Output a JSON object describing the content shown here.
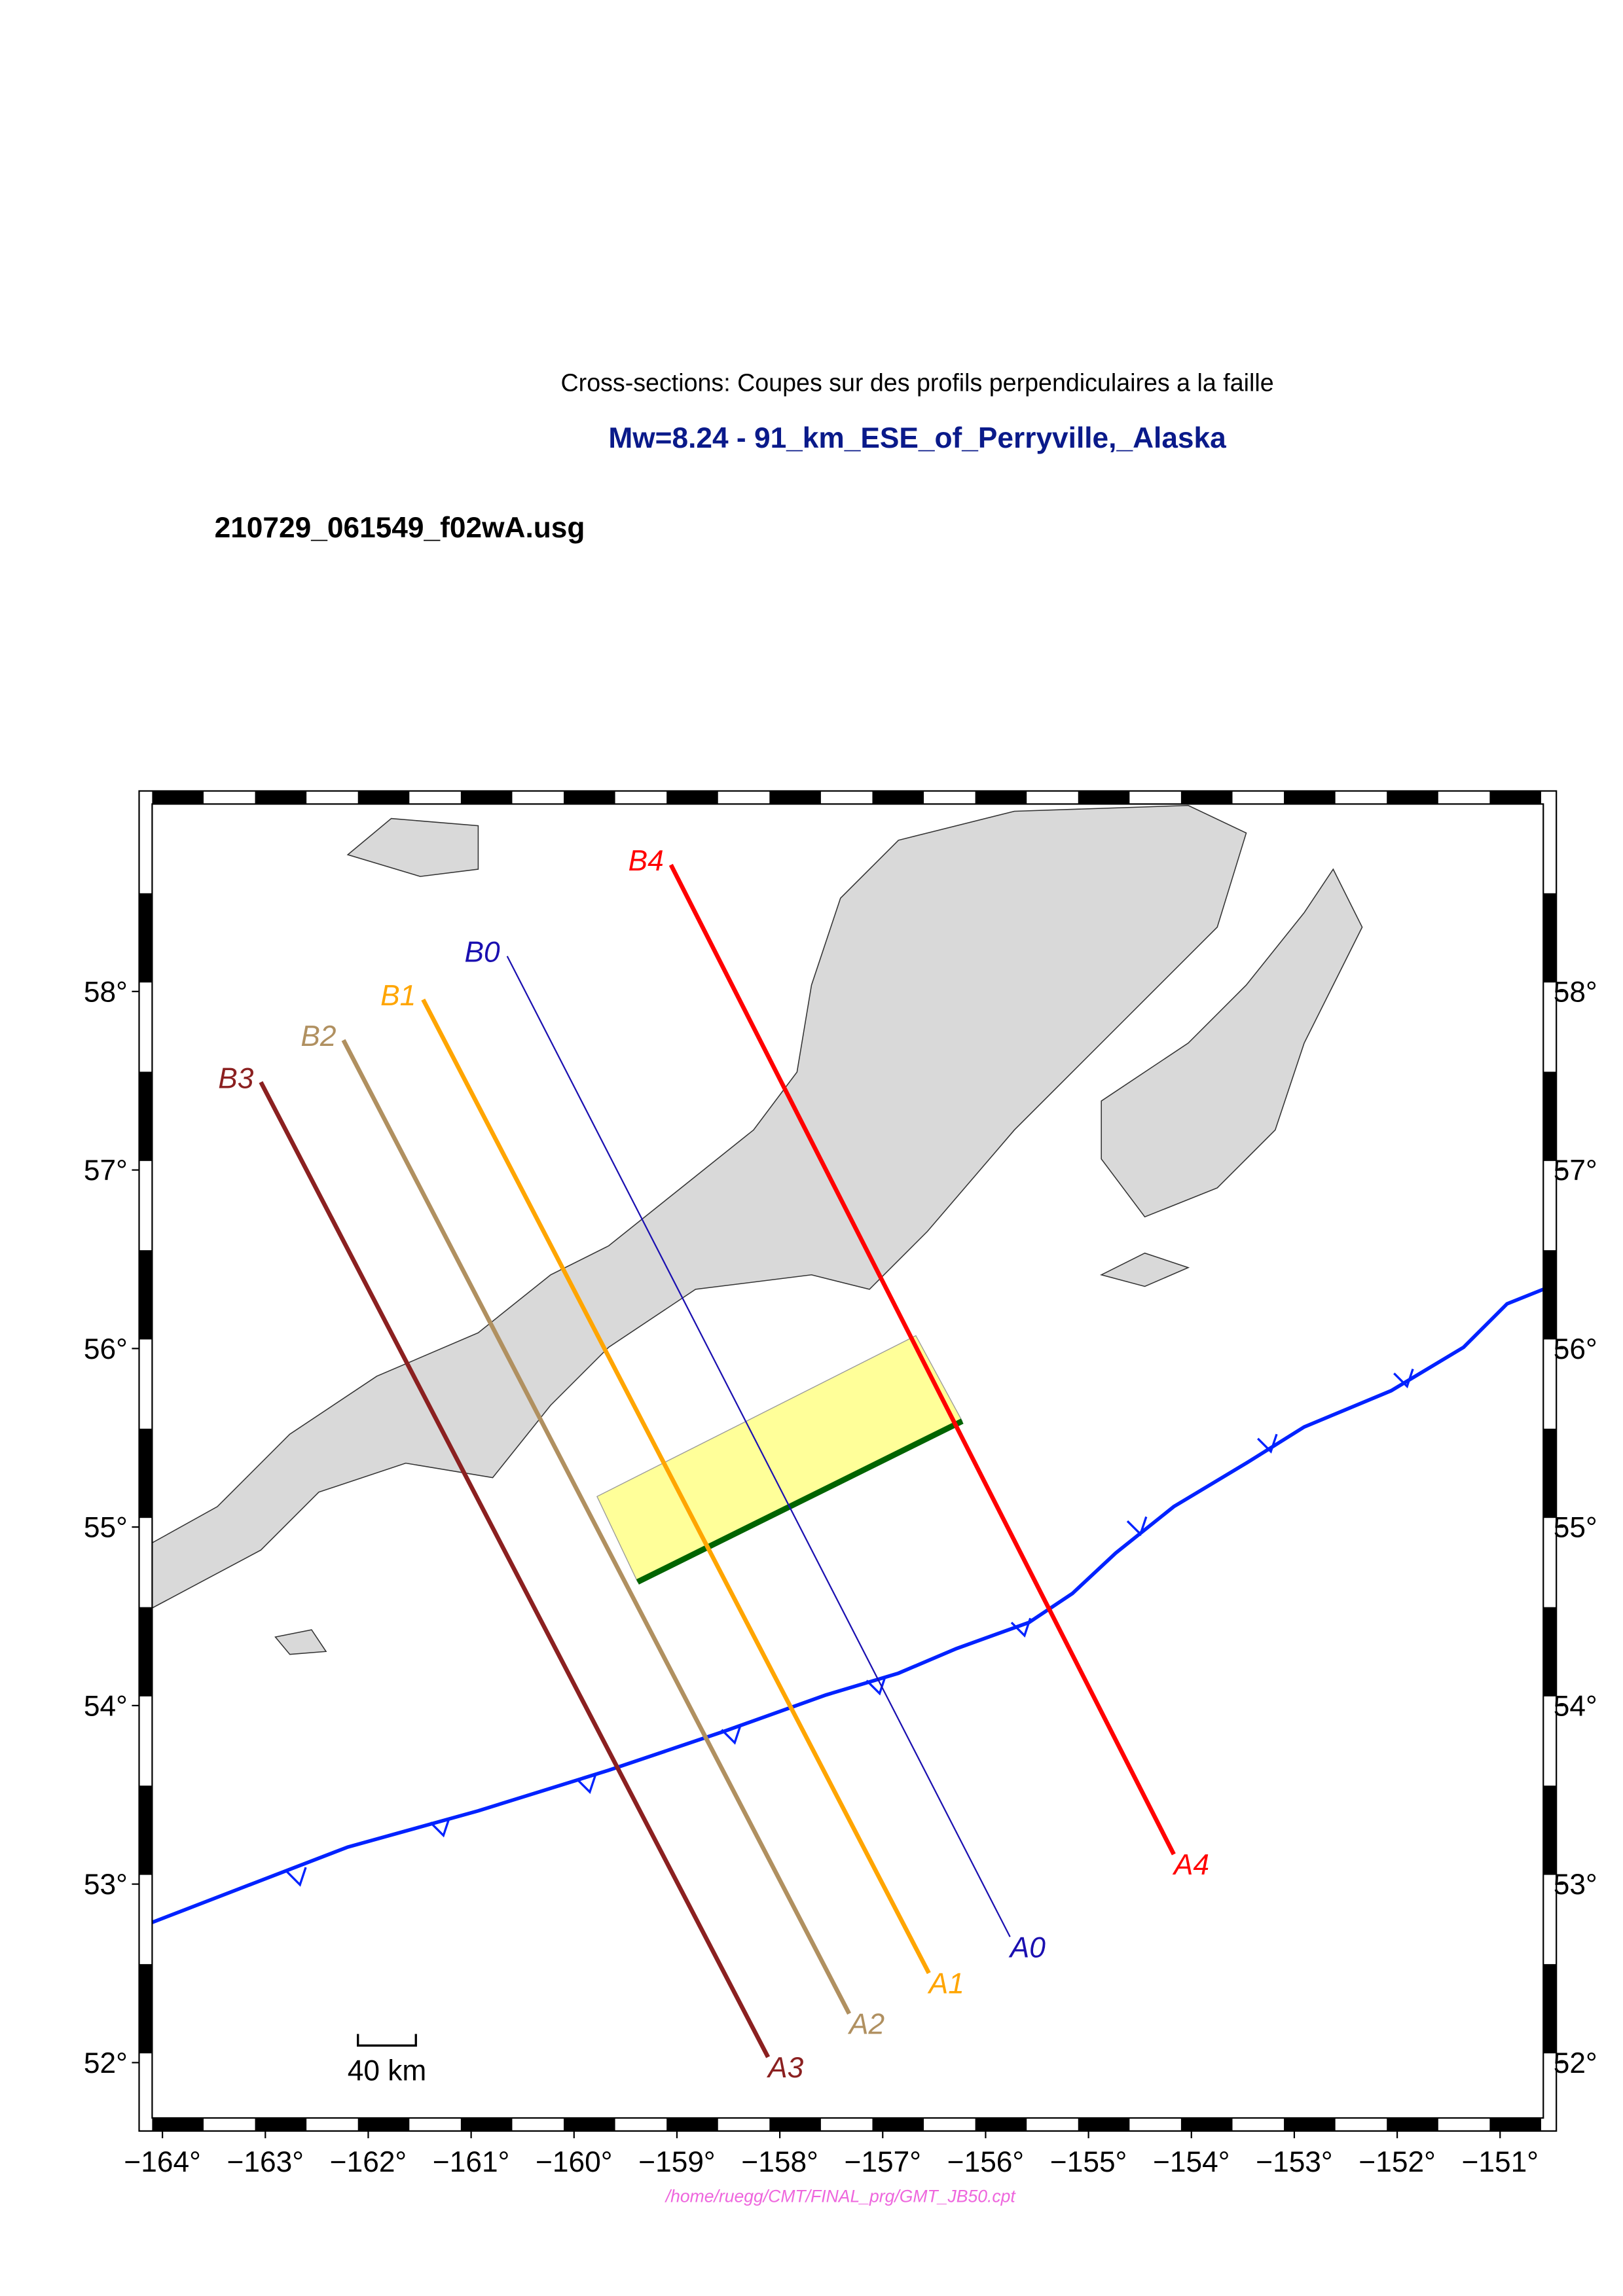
{
  "map": {
    "title": "Cross-sections: Coupes sur des profils perpendiculaires a la faille",
    "subtitle": "Mw=8.24 - 91_km_ESE_of_Perryville,_Alaska",
    "file": "210729_061549_f02wA.usg",
    "footer": "/home/ruegg/CMT/FINAL_prg/GMT_JB50.cpt",
    "scale_label": "40 km",
    "xlim": [
      -164.1,
      -150.58
    ],
    "ylim": [
      51.69,
      59.05
    ],
    "xticks": [
      {
        "value": -164,
        "label": "−164°"
      },
      {
        "value": -163,
        "label": "−163°"
      },
      {
        "value": -162,
        "label": "−162°"
      },
      {
        "value": -161,
        "label": "−161°"
      },
      {
        "value": -160,
        "label": "−160°"
      },
      {
        "value": -159,
        "label": "−159°"
      },
      {
        "value": -158,
        "label": "−158°"
      },
      {
        "value": -157,
        "label": "−157°"
      },
      {
        "value": -156,
        "label": "−156°"
      },
      {
        "value": -155,
        "label": "−155°"
      },
      {
        "value": -154,
        "label": "−154°"
      },
      {
        "value": -153,
        "label": "−153°"
      },
      {
        "value": -152,
        "label": "−152°"
      },
      {
        "value": -151,
        "label": "−151°"
      }
    ],
    "yticks": [
      {
        "value": 52,
        "label": "52°"
      },
      {
        "value": 53,
        "label": "53°"
      },
      {
        "value": 54,
        "label": "54°"
      },
      {
        "value": 55,
        "label": "55°"
      },
      {
        "value": 56,
        "label": "56°"
      },
      {
        "value": 57,
        "label": "57°"
      },
      {
        "value": 58,
        "label": "58°"
      }
    ],
    "profiles": [
      {
        "start": "B0",
        "end": "A0",
        "color": "#1a0fb0"
      },
      {
        "start": "B1",
        "end": "A1",
        "color": "#ffa500"
      },
      {
        "start": "B2",
        "end": "A2",
        "color": "#b09060"
      },
      {
        "start": "B3",
        "end": "A3",
        "color": "#8b2020"
      },
      {
        "start": "B4",
        "end": "A4",
        "color": "#ff0000"
      }
    ]
  }
}
